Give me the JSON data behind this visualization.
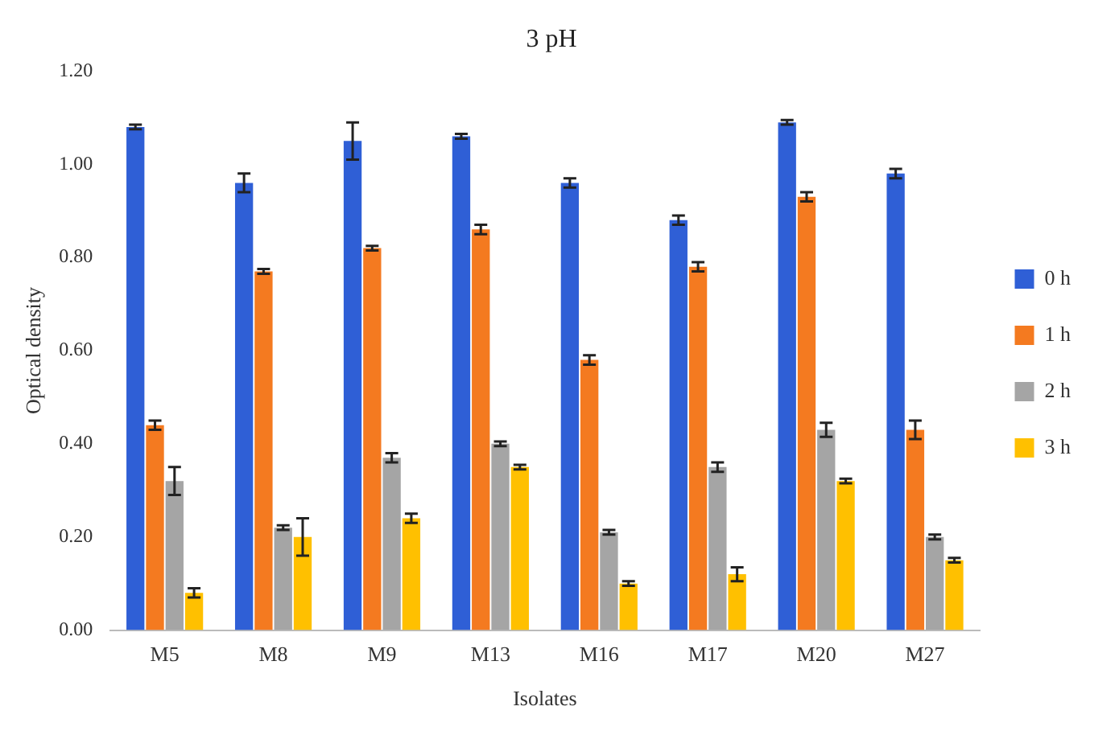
{
  "chart_data": {
    "type": "bar",
    "title": "3 pH",
    "xlabel": "Isolates",
    "ylabel": "Optical density",
    "categories": [
      "M5",
      "M8",
      "M9",
      "M13",
      "M16",
      "M17",
      "M20",
      "M27"
    ],
    "series": [
      {
        "name": "0 h",
        "color": "#2f5fd6",
        "values": [
          1.08,
          0.96,
          1.05,
          1.06,
          0.96,
          0.88,
          1.09,
          0.98
        ],
        "errors": [
          0.005,
          0.02,
          0.04,
          0.005,
          0.01,
          0.01,
          0.005,
          0.01
        ]
      },
      {
        "name": "1 h",
        "color": "#f47a20",
        "values": [
          0.44,
          0.77,
          0.82,
          0.86,
          0.58,
          0.78,
          0.93,
          0.43
        ],
        "errors": [
          0.01,
          0.005,
          0.005,
          0.01,
          0.01,
          0.01,
          0.01,
          0.02
        ]
      },
      {
        "name": "2 h",
        "color": "#a5a5a5",
        "values": [
          0.32,
          0.22,
          0.37,
          0.4,
          0.21,
          0.35,
          0.43,
          0.2
        ],
        "errors": [
          0.03,
          0.005,
          0.01,
          0.005,
          0.005,
          0.01,
          0.015,
          0.005
        ]
      },
      {
        "name": "3 h",
        "color": "#ffc000",
        "values": [
          0.08,
          0.2,
          0.24,
          0.35,
          0.1,
          0.12,
          0.32,
          0.15
        ],
        "errors": [
          0.01,
          0.04,
          0.01,
          0.005,
          0.005,
          0.015,
          0.005,
          0.005
        ]
      }
    ],
    "ylim": [
      0,
      1.2
    ],
    "yticks": [
      {
        "value": 0,
        "label": "0.00"
      },
      {
        "value": 0.2,
        "label": "0.20"
      },
      {
        "value": 0.4,
        "label": "0.40"
      },
      {
        "value": 0.6,
        "label": "0.60"
      },
      {
        "value": 0.8,
        "label": "0.80"
      },
      {
        "value": 1,
        "label": "1.00"
      },
      {
        "value": 1.2,
        "label": "1.20"
      }
    ],
    "grid": false,
    "legend": "right"
  }
}
